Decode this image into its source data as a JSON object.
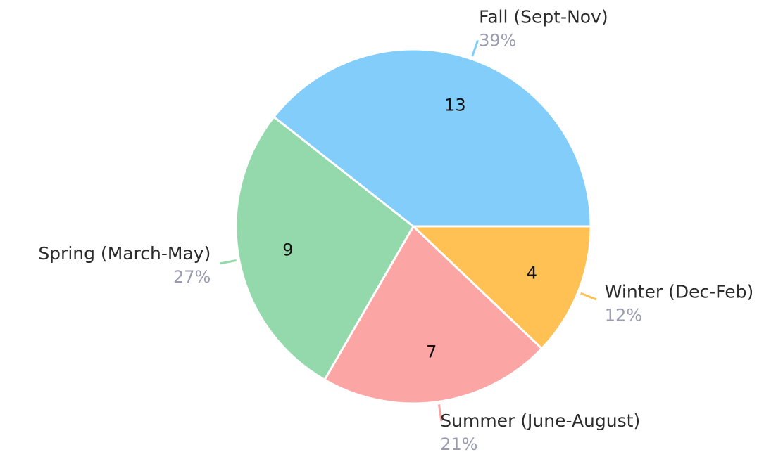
{
  "chart_data": {
    "type": "pie",
    "categories": [
      "Winter (Dec-Feb)",
      "Summer (June-August)",
      "Spring (March-May)",
      "Fall (Sept-Nov)"
    ],
    "values": [
      4,
      7,
      9,
      13
    ],
    "percent_labels": [
      "12%",
      "21%",
      "27%",
      "39%"
    ],
    "colors": [
      "#ffc153",
      "#fba5a5",
      "#94d9ab",
      "#82cdfa"
    ]
  }
}
